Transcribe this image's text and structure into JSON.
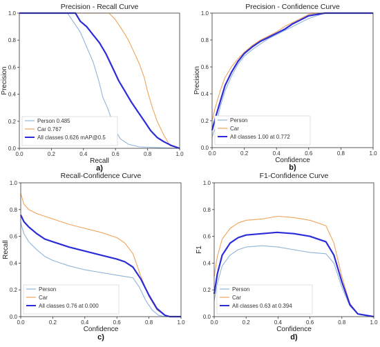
{
  "colors": {
    "person": "#8fb3d9",
    "car": "#f0a35a",
    "all": "#2b2bd9"
  },
  "chart_data": [
    {
      "type": "line",
      "title": "Precision - Recall Curve",
      "xlabel": "Recall",
      "ylabel": "Precision",
      "panel_label": "a)",
      "xlim": [
        0,
        1
      ],
      "ylim": [
        0,
        1
      ],
      "xticks": [
        "0.0",
        "0.2",
        "0.4",
        "0.6",
        "0.8",
        "1.0"
      ],
      "yticks": [
        "0.0",
        "0.2",
        "0.4",
        "0.6",
        "0.8",
        "1.0"
      ],
      "legend_position": "bottom-left",
      "series": [
        {
          "name": "Person 0.485",
          "color_key": "person",
          "points": [
            [
              0,
              1
            ],
            [
              0.3,
              1
            ],
            [
              0.34,
              0.93
            ],
            [
              0.38,
              0.86
            ],
            [
              0.42,
              0.75
            ],
            [
              0.46,
              0.64
            ],
            [
              0.48,
              0.56
            ],
            [
              0.5,
              0.48
            ],
            [
              0.52,
              0.38
            ],
            [
              0.55,
              0.3
            ],
            [
              0.58,
              0.2
            ],
            [
              0.6,
              0.13
            ],
            [
              0.63,
              0.07
            ],
            [
              0.68,
              0.03
            ],
            [
              0.75,
              0.01
            ],
            [
              1,
              0
            ]
          ]
        },
        {
          "name": "Car 0.767",
          "color_key": "car",
          "points": [
            [
              0,
              1
            ],
            [
              0.56,
              1
            ],
            [
              0.6,
              0.95
            ],
            [
              0.65,
              0.86
            ],
            [
              0.68,
              0.8
            ],
            [
              0.72,
              0.7
            ],
            [
              0.75,
              0.62
            ],
            [
              0.78,
              0.52
            ],
            [
              0.8,
              0.42
            ],
            [
              0.83,
              0.3
            ],
            [
              0.86,
              0.2
            ],
            [
              0.9,
              0.1
            ],
            [
              0.94,
              0.02
            ],
            [
              1,
              0
            ]
          ]
        },
        {
          "name": "All classes 0.626 mAP@0.5",
          "color_key": "all",
          "points": [
            [
              0,
              1
            ],
            [
              0.35,
              1
            ],
            [
              0.38,
              0.94
            ],
            [
              0.42,
              0.9
            ],
            [
              0.46,
              0.84
            ],
            [
              0.5,
              0.78
            ],
            [
              0.54,
              0.7
            ],
            [
              0.58,
              0.6
            ],
            [
              0.62,
              0.5
            ],
            [
              0.66,
              0.42
            ],
            [
              0.7,
              0.34
            ],
            [
              0.74,
              0.27
            ],
            [
              0.78,
              0.2
            ],
            [
              0.82,
              0.13
            ],
            [
              0.86,
              0.08
            ],
            [
              0.9,
              0.05
            ],
            [
              0.95,
              0.02
            ],
            [
              1,
              0
            ]
          ]
        }
      ]
    },
    {
      "type": "line",
      "title": "Precision - Confidence Curve",
      "xlabel": "Confidence",
      "ylabel": "Precision",
      "panel_label": "b)",
      "xlim": [
        0,
        1
      ],
      "ylim": [
        0,
        1
      ],
      "xticks": [
        "0.0",
        "0.2",
        "0.4",
        "0.6",
        "0.8",
        "1.0"
      ],
      "yticks": [
        "0.0",
        "0.2",
        "0.4",
        "0.6",
        "0.8",
        "1.0"
      ],
      "legend_position": "bottom-left",
      "series": [
        {
          "name": "Person",
          "color_key": "person",
          "points": [
            [
              0,
              0.08
            ],
            [
              0.02,
              0.15
            ],
            [
              0.05,
              0.3
            ],
            [
              0.08,
              0.42
            ],
            [
              0.12,
              0.53
            ],
            [
              0.16,
              0.62
            ],
            [
              0.2,
              0.68
            ],
            [
              0.25,
              0.73
            ],
            [
              0.3,
              0.77
            ],
            [
              0.35,
              0.81
            ],
            [
              0.4,
              0.84
            ],
            [
              0.45,
              0.87
            ],
            [
              0.5,
              0.9
            ],
            [
              0.55,
              0.93
            ],
            [
              0.6,
              0.96
            ],
            [
              0.65,
              0.98
            ],
            [
              0.7,
              1
            ],
            [
              1,
              1
            ]
          ]
        },
        {
          "name": "Car",
          "color_key": "car",
          "points": [
            [
              0,
              0.2
            ],
            [
              0.02,
              0.3
            ],
            [
              0.05,
              0.42
            ],
            [
              0.08,
              0.52
            ],
            [
              0.12,
              0.6
            ],
            [
              0.16,
              0.66
            ],
            [
              0.2,
              0.71
            ],
            [
              0.25,
              0.76
            ],
            [
              0.3,
              0.8
            ],
            [
              0.35,
              0.83
            ],
            [
              0.4,
              0.86
            ],
            [
              0.45,
              0.9
            ],
            [
              0.5,
              0.93
            ],
            [
              0.55,
              0.96
            ],
            [
              0.6,
              0.99
            ],
            [
              0.65,
              1
            ],
            [
              1,
              1
            ]
          ]
        },
        {
          "name": "All classes 1.00 at 0.772",
          "color_key": "all",
          "points": [
            [
              0,
              0.13
            ],
            [
              0.02,
              0.22
            ],
            [
              0.05,
              0.34
            ],
            [
              0.08,
              0.46
            ],
            [
              0.12,
              0.56
            ],
            [
              0.16,
              0.64
            ],
            [
              0.2,
              0.7
            ],
            [
              0.25,
              0.75
            ],
            [
              0.3,
              0.79
            ],
            [
              0.35,
              0.82
            ],
            [
              0.4,
              0.85
            ],
            [
              0.45,
              0.88
            ],
            [
              0.5,
              0.92
            ],
            [
              0.55,
              0.95
            ],
            [
              0.6,
              0.98
            ],
            [
              0.65,
              0.99
            ],
            [
              0.7,
              1
            ],
            [
              1,
              1
            ]
          ]
        }
      ]
    },
    {
      "type": "line",
      "title": "Recall-Confidence Curve",
      "xlabel": "Confidence",
      "ylabel": "Recall",
      "panel_label": "c)",
      "xlim": [
        0,
        1
      ],
      "ylim": [
        0,
        1
      ],
      "xticks": [
        "0.0",
        "0.2",
        "0.4",
        "0.6",
        "0.8",
        "1.0"
      ],
      "yticks": [
        "0.0",
        "0.2",
        "0.4",
        "0.6",
        "0.8",
        "1.0"
      ],
      "legend_position": "bottom-left",
      "series": [
        {
          "name": "Person",
          "color_key": "person",
          "points": [
            [
              0,
              0.7
            ],
            [
              0.02,
              0.62
            ],
            [
              0.05,
              0.56
            ],
            [
              0.1,
              0.5
            ],
            [
              0.15,
              0.45
            ],
            [
              0.2,
              0.42
            ],
            [
              0.3,
              0.38
            ],
            [
              0.4,
              0.35
            ],
            [
              0.5,
              0.33
            ],
            [
              0.6,
              0.31
            ],
            [
              0.65,
              0.3
            ],
            [
              0.7,
              0.29
            ],
            [
              0.74,
              0.22
            ],
            [
              0.78,
              0.12
            ],
            [
              0.82,
              0.05
            ],
            [
              0.86,
              0.01
            ],
            [
              0.9,
              0
            ],
            [
              1,
              0
            ]
          ]
        },
        {
          "name": "Car",
          "color_key": "car",
          "points": [
            [
              0,
              0.92
            ],
            [
              0.02,
              0.84
            ],
            [
              0.05,
              0.8
            ],
            [
              0.1,
              0.77
            ],
            [
              0.2,
              0.73
            ],
            [
              0.3,
              0.69
            ],
            [
              0.4,
              0.66
            ],
            [
              0.5,
              0.63
            ],
            [
              0.6,
              0.59
            ],
            [
              0.65,
              0.55
            ],
            [
              0.7,
              0.47
            ],
            [
              0.75,
              0.3
            ],
            [
              0.8,
              0.15
            ],
            [
              0.85,
              0.05
            ],
            [
              0.9,
              0.01
            ],
            [
              0.93,
              0
            ],
            [
              1,
              0
            ]
          ]
        },
        {
          "name": "All classes 0.76 at 0.000",
          "color_key": "all",
          "points": [
            [
              0,
              0.76
            ],
            [
              0.02,
              0.71
            ],
            [
              0.05,
              0.67
            ],
            [
              0.1,
              0.62
            ],
            [
              0.15,
              0.58
            ],
            [
              0.2,
              0.56
            ],
            [
              0.3,
              0.52
            ],
            [
              0.4,
              0.49
            ],
            [
              0.5,
              0.46
            ],
            [
              0.6,
              0.43
            ],
            [
              0.65,
              0.41
            ],
            [
              0.7,
              0.37
            ],
            [
              0.75,
              0.28
            ],
            [
              0.8,
              0.16
            ],
            [
              0.85,
              0.06
            ],
            [
              0.9,
              0.01
            ],
            [
              0.93,
              0
            ],
            [
              1,
              0
            ]
          ]
        }
      ]
    },
    {
      "type": "line",
      "title": "F1-Confidence Curve",
      "xlabel": "Confidence",
      "ylabel": "F1",
      "panel_label": "d)",
      "xlim": [
        0,
        1
      ],
      "ylim": [
        0,
        1
      ],
      "xticks": [
        "0.0",
        "0.2",
        "0.4",
        "0.6",
        "0.8",
        "1.0"
      ],
      "yticks": [
        "0.0",
        "0.2",
        "0.4",
        "0.6",
        "0.8",
        "1.0"
      ],
      "legend_position": "bottom-left",
      "series": [
        {
          "name": "Person",
          "color_key": "person",
          "points": [
            [
              0,
              0.12
            ],
            [
              0.02,
              0.25
            ],
            [
              0.05,
              0.38
            ],
            [
              0.1,
              0.46
            ],
            [
              0.15,
              0.5
            ],
            [
              0.2,
              0.52
            ],
            [
              0.3,
              0.53
            ],
            [
              0.4,
              0.52
            ],
            [
              0.5,
              0.5
            ],
            [
              0.6,
              0.48
            ],
            [
              0.7,
              0.47
            ],
            [
              0.75,
              0.4
            ],
            [
              0.8,
              0.22
            ],
            [
              0.85,
              0.08
            ],
            [
              0.9,
              0.02
            ],
            [
              1,
              0
            ]
          ]
        },
        {
          "name": "Car",
          "color_key": "car",
          "points": [
            [
              0,
              0.3
            ],
            [
              0.02,
              0.45
            ],
            [
              0.05,
              0.58
            ],
            [
              0.1,
              0.66
            ],
            [
              0.15,
              0.7
            ],
            [
              0.2,
              0.72
            ],
            [
              0.3,
              0.73
            ],
            [
              0.4,
              0.75
            ],
            [
              0.5,
              0.74
            ],
            [
              0.6,
              0.72
            ],
            [
              0.7,
              0.68
            ],
            [
              0.75,
              0.55
            ],
            [
              0.8,
              0.3
            ],
            [
              0.85,
              0.1
            ],
            [
              0.9,
              0.02
            ],
            [
              1,
              0
            ]
          ]
        },
        {
          "name": "All classes 0.63 at 0.394",
          "color_key": "all",
          "points": [
            [
              0,
              0.17
            ],
            [
              0.02,
              0.32
            ],
            [
              0.05,
              0.46
            ],
            [
              0.1,
              0.55
            ],
            [
              0.15,
              0.59
            ],
            [
              0.2,
              0.61
            ],
            [
              0.3,
              0.62
            ],
            [
              0.394,
              0.63
            ],
            [
              0.5,
              0.62
            ],
            [
              0.6,
              0.6
            ],
            [
              0.7,
              0.56
            ],
            [
              0.75,
              0.46
            ],
            [
              0.8,
              0.26
            ],
            [
              0.85,
              0.09
            ],
            [
              0.9,
              0.02
            ],
            [
              1,
              0
            ]
          ]
        }
      ]
    }
  ]
}
